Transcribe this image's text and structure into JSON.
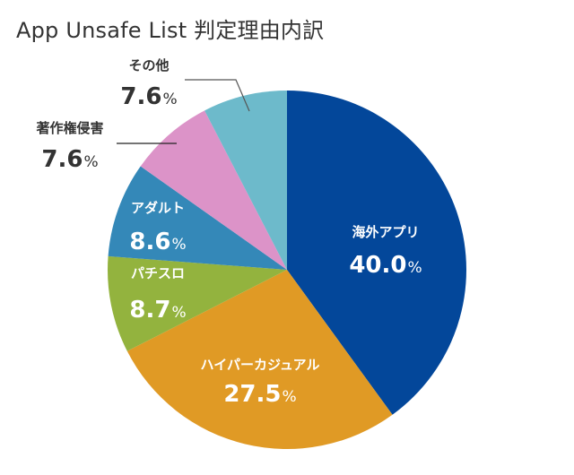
{
  "chart_data": {
    "type": "pie",
    "title": "App Unsafe List 判定理由内訳",
    "start": "12 o'clock",
    "direction": "clockwise",
    "slices": [
      {
        "label": "海外アプリ",
        "value": 40.0,
        "display": "40.0",
        "unit": "%",
        "color": "#03479a",
        "label_color": "#ffffff",
        "label_position": "inside"
      },
      {
        "label": "ハイパーカジュアル",
        "value": 27.5,
        "display": "27.5",
        "unit": "%",
        "color": "#e09a25",
        "label_color": "#ffffff",
        "label_position": "inside"
      },
      {
        "label": "パチスロ",
        "value": 8.7,
        "display": "8.7",
        "unit": "%",
        "color": "#93b33e",
        "label_color": "#ffffff",
        "label_position": "inside"
      },
      {
        "label": "アダルト",
        "value": 8.6,
        "display": "8.6",
        "unit": "%",
        "color": "#3488b8",
        "label_color": "#ffffff",
        "label_position": "inside"
      },
      {
        "label": "著作権侵害",
        "value": 7.6,
        "display": "7.6",
        "unit": "%",
        "color": "#dc93c8",
        "label_color": "#333333",
        "label_position": "outside"
      },
      {
        "label": "その他",
        "value": 7.6,
        "display": "7.6",
        "unit": "%",
        "color": "#6dbacb",
        "label_color": "#333333",
        "label_position": "outside"
      }
    ]
  }
}
